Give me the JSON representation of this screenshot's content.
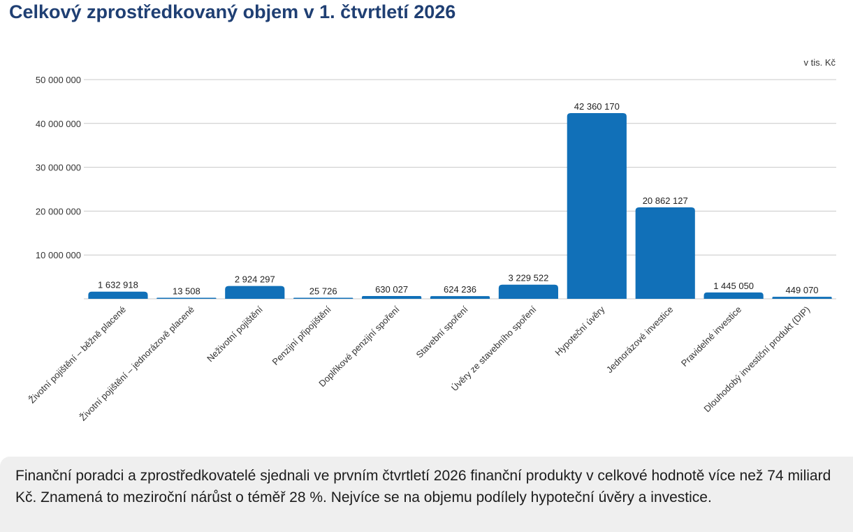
{
  "title": "Celkový zprostředkovaný objem v 1. čtvrtletí 2026",
  "caption": "Finanční poradci a zprostředkovatelé sjednali ve prvním čtvrtletí 2026 finanční produkty v celkové hodnotě více než 74 miliard Kč. Znamená to meziroční nárůst o téměř 28 %. Nejvíce se na objemu podílely hypoteční úvěry a investice.",
  "chart_data": {
    "type": "bar",
    "title": "Celkový zprostředkovaný objem v 1. čtvrtletí 2026",
    "unit_label": "v tis. Kč",
    "categories": [
      "Životní pojištění – běžně placené",
      "Životní pojištění – jednorázově placené",
      "Neživotní pojištění",
      "Penzijní připojištění",
      "Doplňkové penzijní spoření",
      "Stavební spoření",
      "Úvěry ze stavebního spoření",
      "Hypoteční úvěry",
      "Jednorázové investice",
      "Pravidelné investice",
      "Dlouhodobý investiční produkt (DIP)"
    ],
    "values": [
      1632918,
      13508,
      2924297,
      25726,
      630027,
      624236,
      3229522,
      42360170,
      20862127,
      1445050,
      449070
    ],
    "value_labels": [
      "1 632 918",
      "13 508",
      "2 924 297",
      "25 726",
      "630 027",
      "624 236",
      "3 229 522",
      "42 360 170",
      "20 862 127",
      "1 445 050",
      "449 070"
    ],
    "ylim": [
      0,
      50000000
    ],
    "yticks": [
      10000000,
      20000000,
      30000000,
      40000000,
      50000000
    ],
    "ytick_labels": [
      "10 000 000",
      "20 000 000",
      "30 000 000",
      "40 000 000",
      "50 000 000"
    ],
    "grid": true,
    "bar_color": "#1170b8"
  }
}
